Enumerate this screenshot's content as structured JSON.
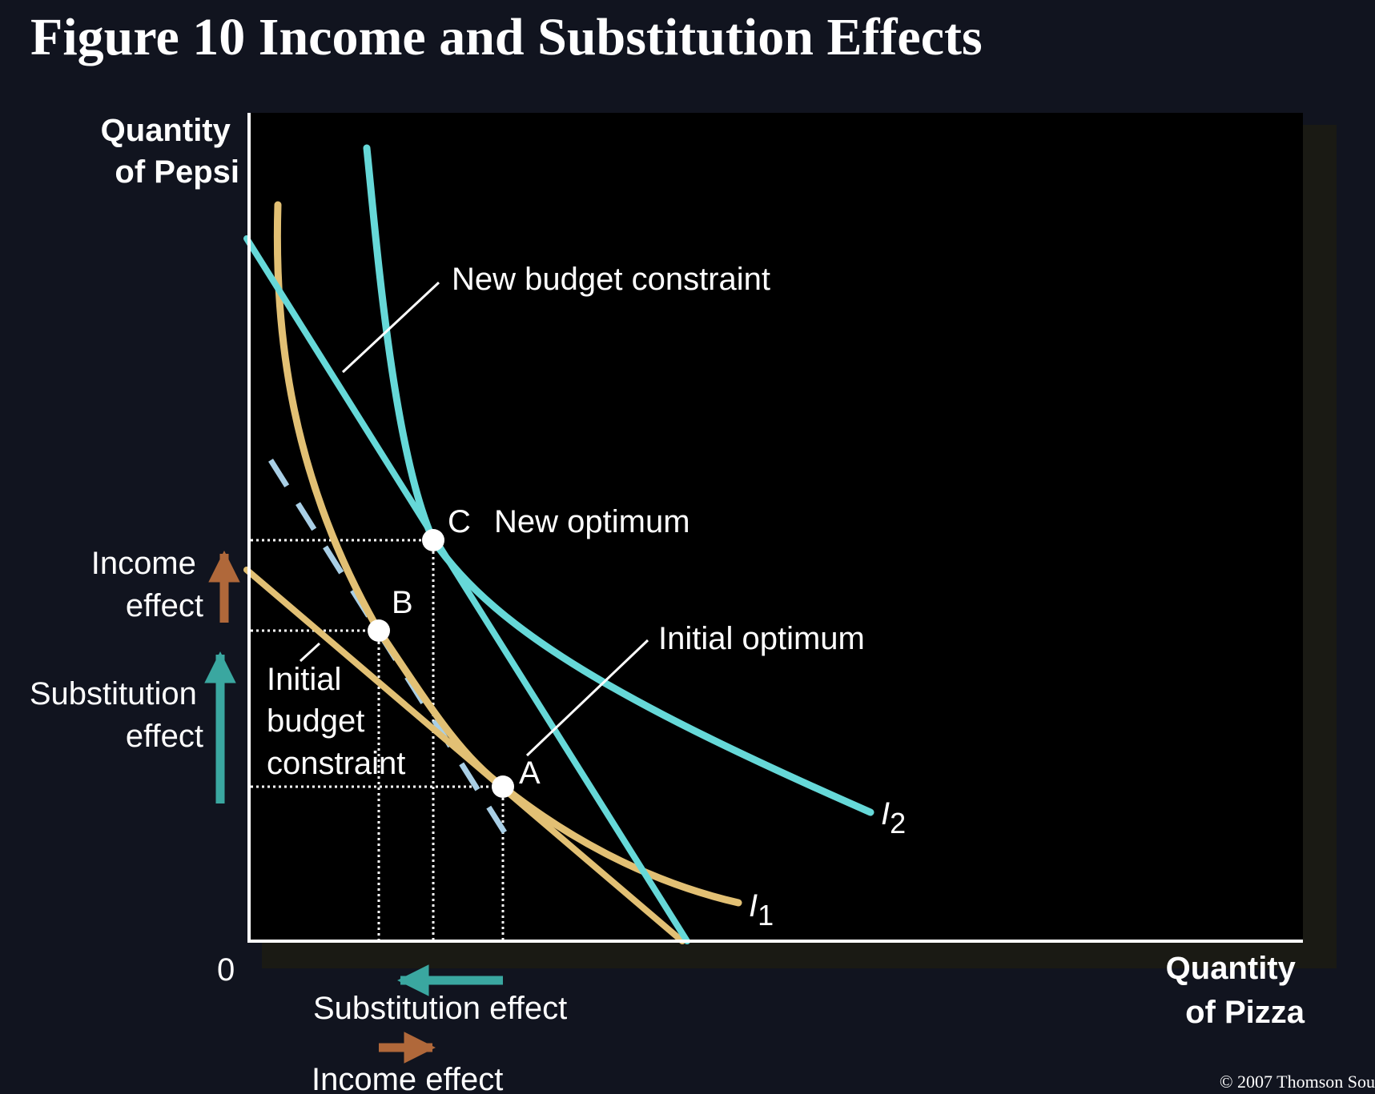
{
  "title": "Figure 10 Income and Substitution Effects",
  "axes": {
    "y_title": [
      "Quantity",
      "of Pepsi"
    ],
    "x_title": [
      "Quantity",
      "of Pizza"
    ],
    "origin": "0"
  },
  "curves": {
    "new_budget_constraint": "New budget constraint",
    "initial_budget_constraint": [
      "Initial",
      "budget",
      "constraint"
    ],
    "i1_letter": "I",
    "i1_sub": "1",
    "i2_letter": "I",
    "i2_sub": "2"
  },
  "points": {
    "a": "A",
    "b": "B",
    "c": "C",
    "new_optimum": "New optimum",
    "initial_optimum": "Initial optimum"
  },
  "effects": {
    "y_income": [
      "Income",
      "effect"
    ],
    "y_substitution": [
      "Substitution",
      "effect"
    ],
    "x_substitution": "Substitution effect",
    "x_income": "Income effect"
  },
  "colors": {
    "income_arrow": "#b0683a",
    "substitution_arrow": "#3aa7a0",
    "indifference_curve": "#e2c074",
    "new_curves": "#66d8d8",
    "compensated_budget_dashed": "#a9cfe6"
  },
  "copyright": "© 2007 Thomson Sou"
}
